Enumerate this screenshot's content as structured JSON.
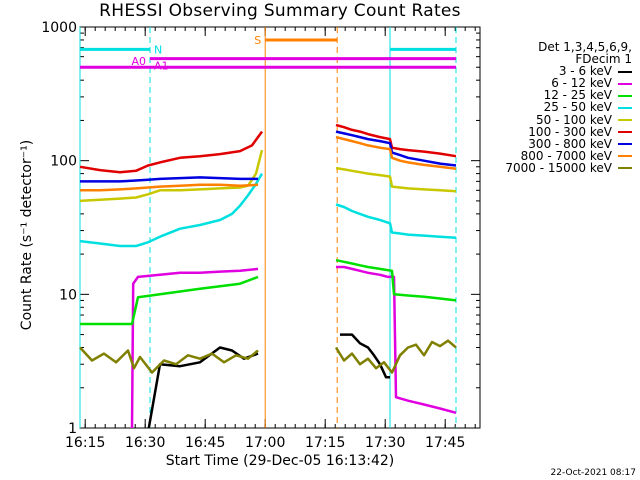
{
  "chart_data": {
    "type": "line",
    "title": "RHESSI Observing Summary Count Rates",
    "xlabel": "Start Time (29-Dec-05 16:13:42)",
    "ylabel": "Count Rate (s⁻¹ detector⁻¹)",
    "yscale": "log",
    "ylim": [
      1,
      1000
    ],
    "xlim_minutes": [
      0,
      100
    ],
    "x_unit": "minutes since 16:13:42",
    "y_ticks": [
      "1",
      "10",
      "100",
      "1000"
    ],
    "x_ticks": [
      {
        "label": "16:15",
        "minute": 1.3
      },
      {
        "label": "16:30",
        "minute": 16.3
      },
      {
        "label": "16:45",
        "minute": 31.3
      },
      {
        "label": "17:00",
        "minute": 46.3
      },
      {
        "label": "17:15",
        "minute": 61.3
      },
      {
        "label": "17:30",
        "minute": 76.3
      },
      {
        "label": "17:45",
        "minute": 91.3
      }
    ],
    "legend_header": [
      "Det 1,3,4,5,6,9,",
      "FDecim 1"
    ],
    "series": [
      {
        "name": "3 - 6 keV",
        "color": "#000000",
        "x": [
          17.2,
          20,
          25,
          30,
          35,
          38,
          41,
          44.5
        ],
        "y": [
          1,
          3,
          2.9,
          3.1,
          4,
          3.8,
          3.3,
          3.6
        ],
        "x2": [
          65,
          68,
          70,
          72,
          73.5,
          75,
          76.5,
          77.5
        ],
        "y2": [
          5,
          5,
          4.3,
          4,
          3.5,
          3,
          2.4,
          2.4
        ]
      },
      {
        "name": "6 - 12 keV",
        "color": "#e000e0",
        "x": [
          13,
          13.3,
          14.5,
          20,
          25,
          30,
          35,
          40,
          44.5
        ],
        "y": [
          1,
          12,
          13.5,
          14,
          14.5,
          14.5,
          14.8,
          15,
          15.5
        ],
        "x2": [
          64,
          66,
          68,
          70,
          72,
          75,
          77,
          78.5,
          79,
          82,
          86,
          90,
          94
        ],
        "y2": [
          16,
          16,
          15.5,
          15,
          14.5,
          14,
          13.5,
          13.5,
          1.7,
          1.6,
          1.5,
          1.4,
          1.3
        ]
      },
      {
        "name": "12 - 25 keV",
        "color": "#00e000",
        "x": [
          0,
          5,
          10,
          13,
          14.5,
          20,
          25,
          30,
          35,
          40,
          44.5
        ],
        "y": [
          6,
          6,
          6,
          6,
          9.5,
          10,
          10.5,
          11,
          11.5,
          12,
          13.5
        ],
        "x2": [
          64,
          66,
          68,
          70,
          72,
          75,
          78,
          78.5,
          82,
          86,
          90,
          94
        ],
        "y2": [
          18,
          17.5,
          17,
          16.5,
          16,
          15.5,
          15,
          10,
          9.8,
          9.6,
          9.3,
          9
        ]
      },
      {
        "name": "25 - 50 keV",
        "color": "#00e0e0",
        "x": [
          0,
          5,
          10,
          14,
          17,
          20,
          25,
          30,
          35,
          38,
          40,
          42,
          44,
          45.5
        ],
        "y": [
          25,
          24,
          23,
          23,
          24.5,
          27,
          31,
          33,
          36,
          40,
          46,
          55,
          67,
          80
        ],
        "x2": [
          64,
          66,
          68,
          70,
          72,
          75,
          77.5,
          78,
          80,
          82,
          86,
          90,
          94
        ],
        "y2": [
          47,
          45,
          42,
          40,
          38,
          36,
          34,
          29,
          28.5,
          28,
          27.5,
          27,
          26.5
        ]
      },
      {
        "name": "50 - 100 keV",
        "color": "#c8c800",
        "x": [
          0,
          5,
          10,
          14,
          17,
          20,
          25,
          30,
          35,
          40,
          42,
          44,
          45.5
        ],
        "y": [
          50,
          51,
          52,
          53,
          56,
          60,
          60,
          61,
          62,
          63,
          65,
          80,
          120
        ],
        "x2": [
          64,
          66,
          68,
          70,
          72,
          75,
          77.5,
          78,
          80,
          82,
          86,
          90,
          94
        ],
        "y2": [
          88,
          86,
          84,
          82,
          80,
          78,
          76,
          64,
          63,
          62,
          61,
          60,
          59
        ]
      },
      {
        "name": "100 - 300 keV",
        "color": "#e00000",
        "x": [
          0,
          5,
          10,
          14,
          17,
          20,
          25,
          30,
          35,
          40,
          43,
          45.5
        ],
        "y": [
          90,
          85,
          82,
          84,
          92,
          97,
          105,
          108,
          112,
          118,
          130,
          165
        ],
        "x2": [
          64,
          66,
          68,
          70,
          72,
          75,
          77.5,
          78,
          80,
          82,
          86,
          90,
          94
        ],
        "y2": [
          185,
          178,
          170,
          165,
          158,
          150,
          145,
          125,
          122,
          120,
          117,
          113,
          108
        ]
      },
      {
        "name": "300 - 800 keV",
        "color": "#0000e0",
        "x": [
          0,
          5,
          10,
          14,
          17,
          20,
          25,
          30,
          35,
          40,
          44.5
        ],
        "y": [
          70,
          70,
          70,
          71,
          72,
          73,
          74,
          75,
          74,
          73,
          73
        ],
        "x2": [
          64,
          66,
          68,
          70,
          72,
          75,
          77.5,
          78,
          80,
          82,
          86,
          90,
          94
        ],
        "y2": [
          165,
          160,
          155,
          150,
          145,
          140,
          135,
          115,
          110,
          105,
          100,
          95,
          92
        ]
      },
      {
        "name": "800 - 7000 keV",
        "color": "#ff8000",
        "x": [
          0,
          5,
          10,
          14,
          17,
          20,
          25,
          30,
          35,
          40,
          44.5
        ],
        "y": [
          60,
          60,
          61,
          62,
          63,
          64,
          65,
          66,
          66,
          65,
          66
        ],
        "x2": [
          64,
          66,
          68,
          70,
          72,
          75,
          77.5,
          78,
          80,
          82,
          86,
          90,
          94
        ],
        "y2": [
          150,
          145,
          140,
          135,
          130,
          125,
          122,
          105,
          100,
          97,
          93,
          90,
          87
        ]
      },
      {
        "name": "7000 - 15000 keV",
        "color": "#808000",
        "x": [
          0,
          3,
          6,
          9,
          12,
          13.5,
          15,
          18,
          21,
          24,
          27,
          30,
          33,
          36,
          39,
          42,
          44.5
        ],
        "y": [
          4,
          3.2,
          3.6,
          3.1,
          3.8,
          2.8,
          3.4,
          2.6,
          3.2,
          3,
          3.5,
          3.3,
          3.6,
          3.1,
          3.5,
          3.3,
          3.8
        ],
        "x2": [
          64,
          66,
          68,
          70,
          72,
          74,
          76,
          78,
          80,
          82,
          84,
          86,
          88,
          90,
          92,
          94
        ],
        "y2": [
          4,
          3.2,
          3.6,
          3,
          3.3,
          2.8,
          3.1,
          2.6,
          3.5,
          4,
          4.2,
          3.5,
          4.4,
          4.1,
          4.5,
          4
        ]
      }
    ],
    "annotations": [
      {
        "label": "N",
        "color": "#00e0e0",
        "y": 680,
        "segments": [
          [
            0,
            17.5
          ],
          [
            77.5,
            94
          ]
        ]
      },
      {
        "label": "S",
        "color": "#ff8000",
        "y": 800,
        "segments": [
          [
            46.3,
            64.3
          ]
        ]
      },
      {
        "label": "A0",
        "color": "#e000e0",
        "y": 500,
        "segments": [
          [
            0,
            94
          ]
        ]
      },
      {
        "label": "A1",
        "color": "#e000e0",
        "y": 580,
        "segments": [
          [
            17.5,
            94
          ]
        ]
      }
    ],
    "vertical_markers": [
      {
        "minute": 0,
        "color": "#00e0e0",
        "style": "solid"
      },
      {
        "minute": 17.5,
        "color": "#00e0e0",
        "style": "dashed"
      },
      {
        "minute": 46.3,
        "color": "#ff8000",
        "style": "solid"
      },
      {
        "minute": 64.3,
        "color": "#ff8000",
        "style": "dashed"
      },
      {
        "minute": 77.5,
        "color": "#00e0e0",
        "style": "solid"
      },
      {
        "minute": 94,
        "color": "#00e0e0",
        "style": "dashed"
      }
    ]
  },
  "footer": {
    "date_stamp": "22-Oct-2021 08:17"
  }
}
